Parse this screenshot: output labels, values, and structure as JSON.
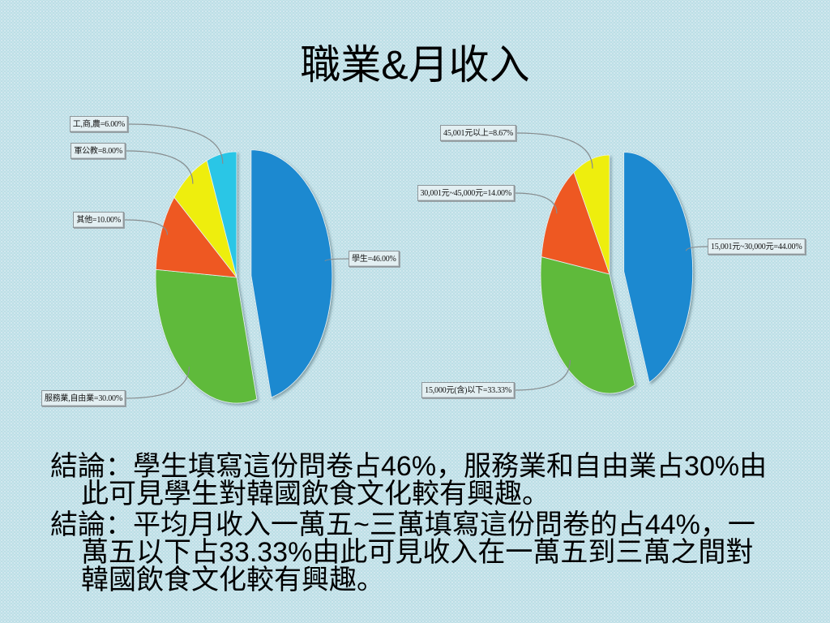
{
  "slide": {
    "title": "職業&月收入",
    "background_color": "#bcdee6"
  },
  "chart_data": [
    {
      "type": "pie",
      "categories": [
        "學生",
        "服務業,自由業",
        "其他",
        "軍公教",
        "工,商,農"
      ],
      "values": [
        46.0,
        30.0,
        10.0,
        8.0,
        6.0
      ],
      "colors": [
        "#1f89d0",
        "#5fba3b",
        "#ee5824",
        "#eeee0a",
        "#2cc6e6"
      ],
      "exploded": [
        true,
        false,
        false,
        false,
        false
      ]
    },
    {
      "type": "pie",
      "categories": [
        "15,001元~30,000元",
        "15,000元(含)以下",
        "30,001元~45,000元",
        "45,001元以上"
      ],
      "values": [
        44.0,
        33.33,
        14.0,
        8.67
      ],
      "colors": [
        "#1f89d0",
        "#5fba3b",
        "#ee5824",
        "#eeee0a"
      ],
      "exploded": [
        true,
        false,
        false,
        false
      ]
    }
  ],
  "conclusions": [
    {
      "lines": [
        "結論：學生填寫這份問卷占46%，服務業和自由業占30%由",
        "此可見學生對韓國飲食文化較有興趣。"
      ]
    },
    {
      "lines": [
        "結論：平均月收入一萬五~三萬填寫這份問卷的占44%，一",
        "萬五以下占33.33%由此可見收入在一萬五到三萬之間對",
        "韓國飲食文化較有興趣。"
      ]
    }
  ]
}
